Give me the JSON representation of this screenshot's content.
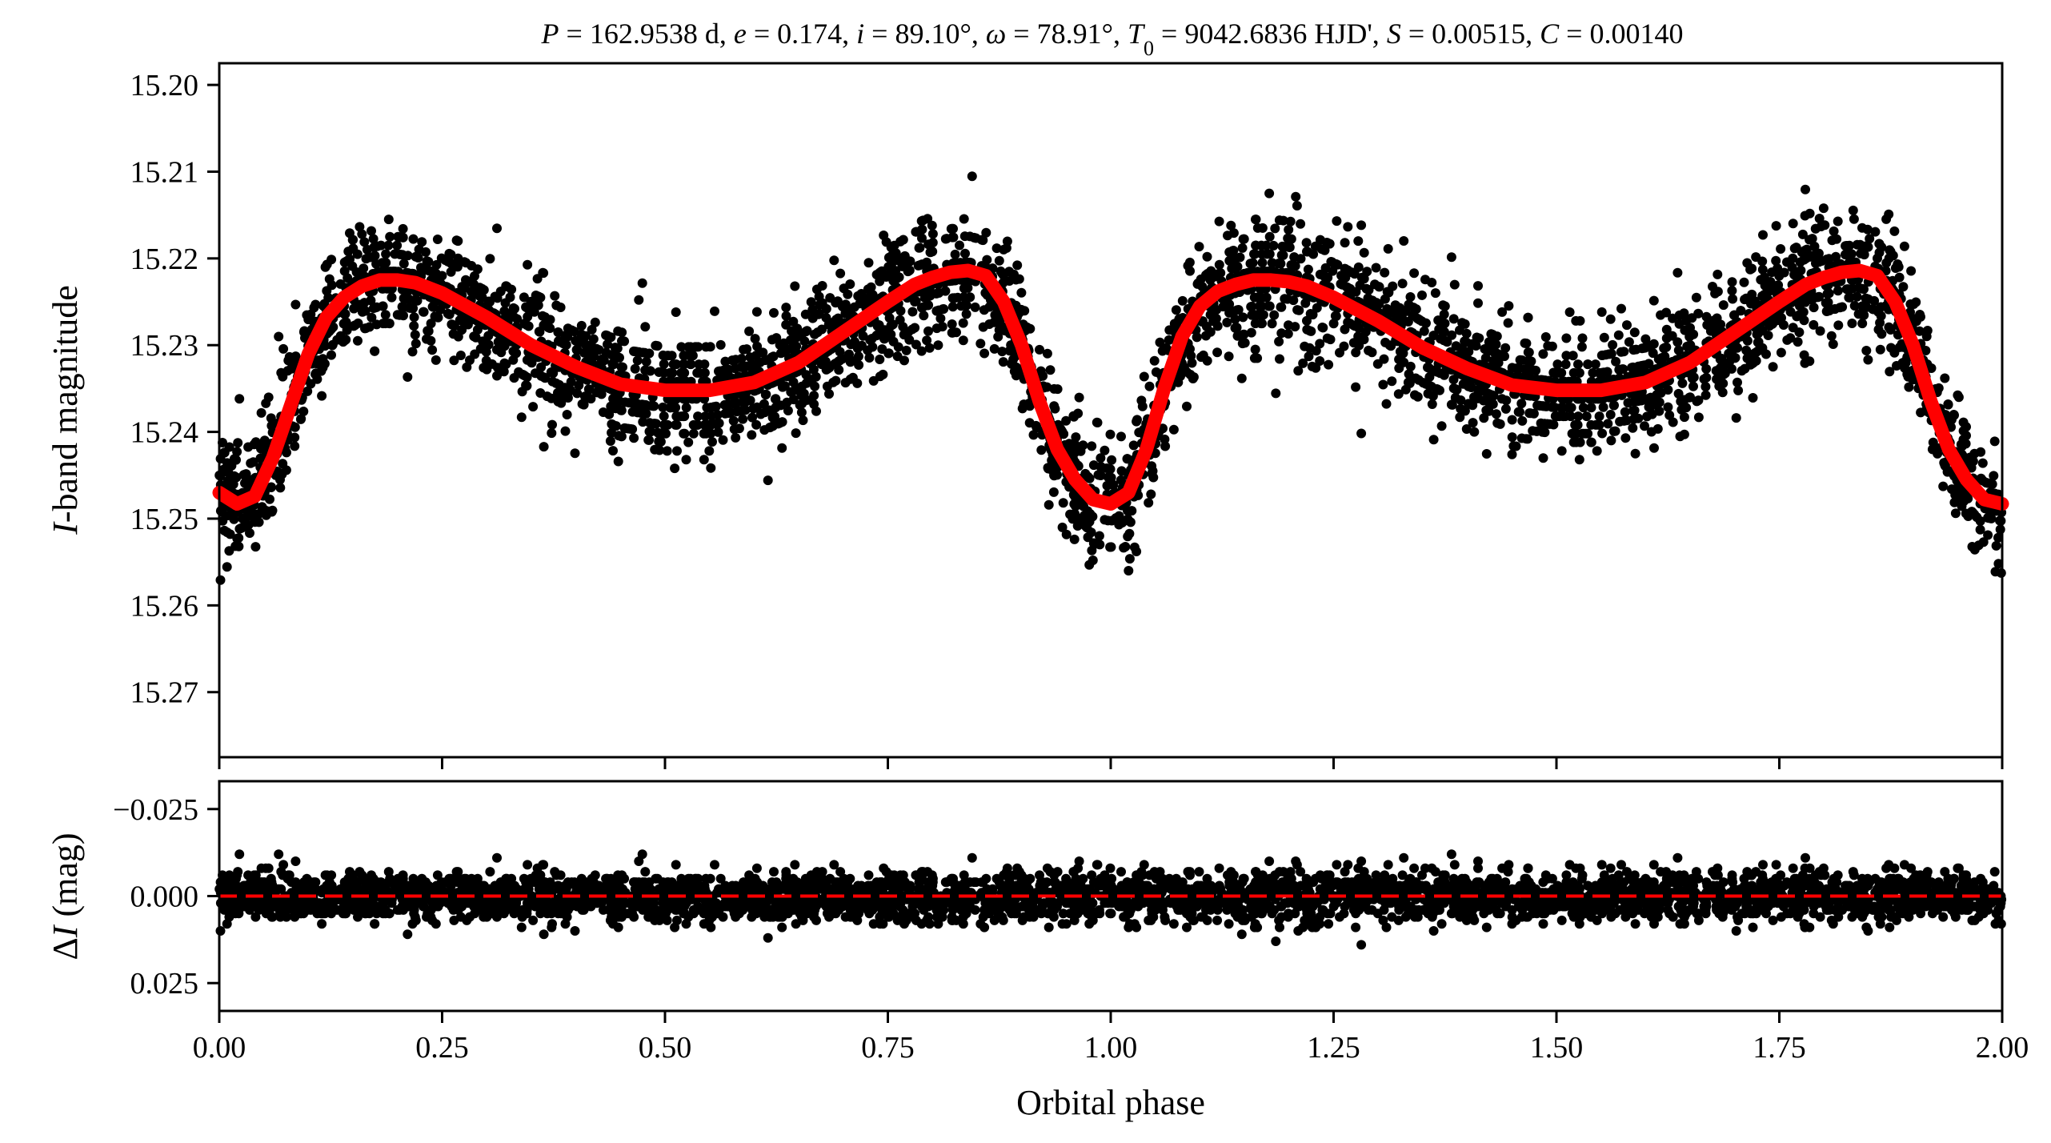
{
  "chart_data": [
    {
      "type": "scatter",
      "panel": "top",
      "title": "P = 162.9538 d, e = 0.174, i = 89.10°, ω = 78.91°, T0 = 9042.6836 HJD', S = 0.00515, C = 0.00140",
      "title_parts": [
        {
          "t": "P",
          "i": true
        },
        {
          "t": " = 162.9538 d, "
        },
        {
          "t": "e",
          "i": true
        },
        {
          "t": " = 0.174, "
        },
        {
          "t": "i",
          "i": true
        },
        {
          "t": " = 89.10°, "
        },
        {
          "t": "ω",
          "i": true
        },
        {
          "t": " = 78.91°, "
        },
        {
          "t": "T",
          "i": true
        },
        {
          "t": "0",
          "sub": true
        },
        {
          "t": " = 9042.6836 HJD', "
        },
        {
          "t": "S",
          "i": true
        },
        {
          "t": " = 0.00515, "
        },
        {
          "t": "C",
          "i": true
        },
        {
          "t": " = 0.00140"
        }
      ],
      "xlabel": "",
      "ylabel": "I-band magnitude",
      "ylabel_italic": "I",
      "ylabel_rest": "-band magnitude",
      "xlim": [
        0.0,
        2.0
      ],
      "ylim": [
        15.2775,
        15.1975
      ],
      "y_inverted": true,
      "yticks": [
        15.2,
        15.21,
        15.22,
        15.23,
        15.24,
        15.25,
        15.26,
        15.27
      ],
      "ytick_labels": [
        "15.20",
        "15.21",
        "15.22",
        "15.23",
        "15.24",
        "15.25",
        "15.26",
        "15.27"
      ],
      "xticks": [
        0.0,
        0.25,
        0.5,
        0.75,
        1.0,
        1.25,
        1.5,
        1.75,
        2.0
      ],
      "series": [
        {
          "kind": "points",
          "color": "#000000",
          "approx_count": 4000,
          "scatter_sigma": 0.0065
        },
        {
          "kind": "model",
          "color": "#ff0000",
          "x": [
            0.0,
            0.02,
            0.04,
            0.06,
            0.08,
            0.1,
            0.12,
            0.14,
            0.16,
            0.18,
            0.2,
            0.22,
            0.25,
            0.3,
            0.35,
            0.4,
            0.45,
            0.5,
            0.55,
            0.6,
            0.65,
            0.7,
            0.75,
            0.78,
            0.8,
            0.82,
            0.84,
            0.86,
            0.88,
            0.9,
            0.92,
            0.94,
            0.96,
            0.98,
            1.0,
            1.02,
            1.04,
            1.06,
            1.08,
            1.1,
            1.12,
            1.14,
            1.16,
            1.18,
            1.2,
            1.22,
            1.25,
            1.3,
            1.35,
            1.4,
            1.45,
            1.5,
            1.55,
            1.6,
            1.65,
            1.7,
            1.75,
            1.78,
            1.8,
            1.82,
            1.84,
            1.86,
            1.88,
            1.9,
            1.92,
            1.94,
            1.96,
            1.98,
            2.0
          ],
          "y": [
            15.247,
            15.2483,
            15.2474,
            15.243,
            15.237,
            15.231,
            15.2268,
            15.2245,
            15.2232,
            15.2225,
            15.2225,
            15.2228,
            15.224,
            15.2268,
            15.23,
            15.2325,
            15.2345,
            15.2352,
            15.2352,
            15.2343,
            15.232,
            15.2285,
            15.225,
            15.223,
            15.2222,
            15.2216,
            15.2214,
            15.222,
            15.225,
            15.23,
            15.2365,
            15.242,
            15.2455,
            15.2478,
            15.2483,
            15.247,
            15.242,
            15.235,
            15.229,
            15.2255,
            15.2238,
            15.223,
            15.2225,
            15.2225,
            15.2227,
            15.2232,
            15.2245,
            15.2272,
            15.2303,
            15.2327,
            15.2346,
            15.2352,
            15.2352,
            15.2343,
            15.232,
            15.2285,
            15.225,
            15.223,
            15.2222,
            15.2216,
            15.2214,
            15.222,
            15.225,
            15.23,
            15.2365,
            15.242,
            15.2455,
            15.2478,
            15.2483
          ]
        }
      ]
    },
    {
      "type": "scatter",
      "panel": "bottom",
      "title": "",
      "xlabel": "Orbital phase",
      "ylabel": "ΔI (mag)",
      "ylabel_plain": "Δ",
      "ylabel_italic": "I",
      "ylabel_rest": " (mag)",
      "xlim": [
        0.0,
        2.0
      ],
      "ylim": [
        0.033,
        -0.033
      ],
      "y_inverted": true,
      "yticks": [
        -0.025,
        0.0,
        0.025
      ],
      "ytick_labels": [
        "−0.025",
        "0.000",
        "0.025"
      ],
      "xticks": [
        0.0,
        0.25,
        0.5,
        0.75,
        1.0,
        1.25,
        1.5,
        1.75,
        2.0
      ],
      "xtick_labels": [
        "0.00",
        "0.25",
        "0.50",
        "0.75",
        "1.00",
        "1.25",
        "1.50",
        "1.75",
        "2.00"
      ],
      "series": [
        {
          "kind": "points",
          "color": "#000000",
          "approx_count": 4000,
          "scatter_sigma": 0.0065
        },
        {
          "kind": "reference-line",
          "style": "dashed",
          "color": "#ff0000",
          "y": 0.0
        }
      ]
    }
  ]
}
